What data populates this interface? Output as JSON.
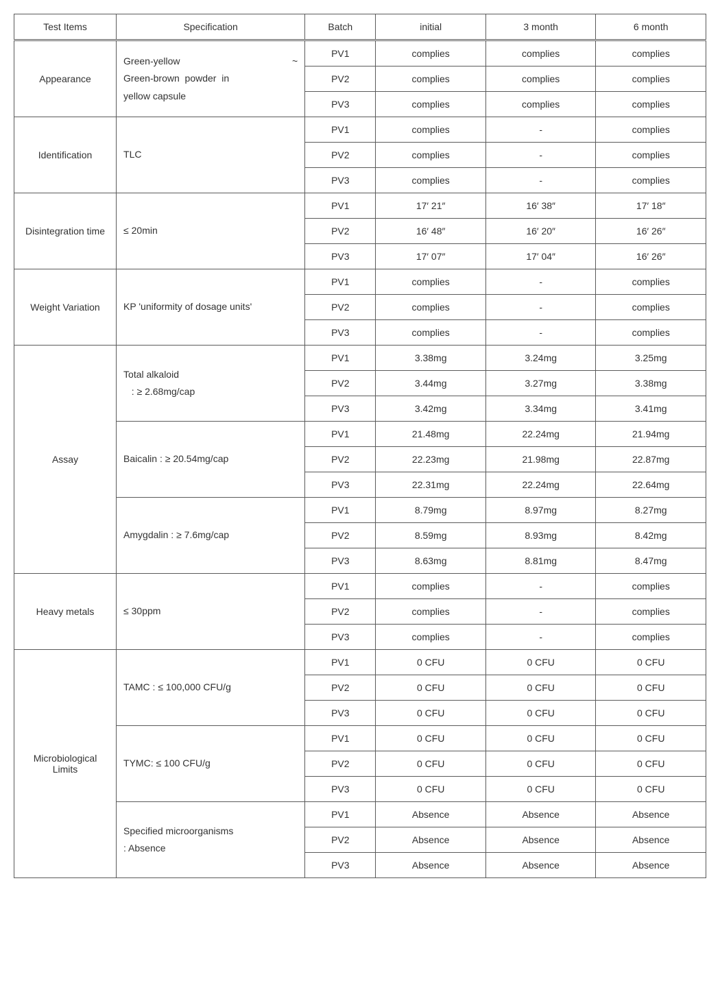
{
  "headers": {
    "test_items": "Test Items",
    "specification": "Specification",
    "batch": "Batch",
    "initial": "initial",
    "m3": "3 month",
    "m6": "6 month"
  },
  "batches": [
    "PV1",
    "PV2",
    "PV3"
  ],
  "items": [
    {
      "name": "Appearance",
      "spec_html": "Green-yellow ~ Green-brown powder in yellow capsule",
      "rows": [
        {
          "initial": "complies",
          "m3": "complies",
          "m6": "complies"
        },
        {
          "initial": "complies",
          "m3": "complies",
          "m6": "complies"
        },
        {
          "initial": "complies",
          "m3": "complies",
          "m6": "complies"
        }
      ]
    },
    {
      "name": "Identification",
      "spec": "TLC",
      "rows": [
        {
          "initial": "complies",
          "m3": "-",
          "m6": "complies"
        },
        {
          "initial": "complies",
          "m3": "-",
          "m6": "complies"
        },
        {
          "initial": "complies",
          "m3": "-",
          "m6": "complies"
        }
      ]
    },
    {
      "name": "Disintegration time",
      "spec": "≤ 20min",
      "rows": [
        {
          "initial": "17′ 21″",
          "m3": "16′ 38″",
          "m6": "17′ 18″"
        },
        {
          "initial": "16′ 48″",
          "m3": "16′ 20″",
          "m6": "16′ 26″"
        },
        {
          "initial": "17′ 07″",
          "m3": "17′ 04″",
          "m6": "16′ 26″"
        }
      ]
    },
    {
      "name": "Weight Variation",
      "spec": "KP 'uniformity of dosage units'",
      "rows": [
        {
          "initial": "complies",
          "m3": "-",
          "m6": "complies"
        },
        {
          "initial": "complies",
          "m3": "-",
          "m6": "complies"
        },
        {
          "initial": "complies",
          "m3": "-",
          "m6": "complies"
        }
      ]
    },
    {
      "name": "Assay",
      "subspecs": [
        {
          "spec_html": "Total alkaloid<br>&nbsp;&nbsp;&nbsp;: ≥ 2.68mg/cap",
          "rows": [
            {
              "initial": "3.38mg",
              "m3": "3.24mg",
              "m6": "3.25mg"
            },
            {
              "initial": "3.44mg",
              "m3": "3.27mg",
              "m6": "3.38mg"
            },
            {
              "initial": "3.42mg",
              "m3": "3.34mg",
              "m6": "3.41mg"
            }
          ]
        },
        {
          "spec": "Baicalin : ≥ 20.54mg/cap",
          "rows": [
            {
              "initial": "21.48mg",
              "m3": "22.24mg",
              "m6": "21.94mg"
            },
            {
              "initial": "22.23mg",
              "m3": "21.98mg",
              "m6": "22.87mg"
            },
            {
              "initial": "22.31mg",
              "m3": "22.24mg",
              "m6": "22.64mg"
            }
          ]
        },
        {
          "spec": "Amygdalin : ≥ 7.6mg/cap",
          "rows": [
            {
              "initial": "8.79mg",
              "m3": "8.97mg",
              "m6": "8.27mg"
            },
            {
              "initial": "8.59mg",
              "m3": "8.93mg",
              "m6": "8.42mg"
            },
            {
              "initial": "8.63mg",
              "m3": "8.81mg",
              "m6": "8.47mg"
            }
          ]
        }
      ]
    },
    {
      "name": "Heavy metals",
      "spec": "≤ 30ppm",
      "rows": [
        {
          "initial": "complies",
          "m3": "-",
          "m6": "complies"
        },
        {
          "initial": "complies",
          "m3": "-",
          "m6": "complies"
        },
        {
          "initial": "complies",
          "m3": "-",
          "m6": "complies"
        }
      ]
    },
    {
      "name": "Microbiological Limits",
      "subspecs": [
        {
          "spec": "TAMC : ≤ 100,000 CFU/g",
          "rows": [
            {
              "initial": "0 CFU",
              "m3": "0 CFU",
              "m6": "0 CFU"
            },
            {
              "initial": "0 CFU",
              "m3": "0 CFU",
              "m6": "0 CFU"
            },
            {
              "initial": "0 CFU",
              "m3": "0 CFU",
              "m6": "0 CFU"
            }
          ]
        },
        {
          "spec": "TYMC: ≤ 100 CFU/g",
          "rows": [
            {
              "initial": "0 CFU",
              "m3": "0 CFU",
              "m6": "0 CFU"
            },
            {
              "initial": "0 CFU",
              "m3": "0 CFU",
              "m6": "0 CFU"
            },
            {
              "initial": "0 CFU",
              "m3": "0 CFU",
              "m6": "0 CFU"
            }
          ]
        },
        {
          "spec_html": "Specified microorganisms<br>: Absence",
          "rows": [
            {
              "initial": "Absence",
              "m3": "Absence",
              "m6": "Absence"
            },
            {
              "initial": "Absence",
              "m3": "Absence",
              "m6": "Absence"
            },
            {
              "initial": "Absence",
              "m3": "Absence",
              "m6": "Absence"
            }
          ]
        }
      ]
    }
  ]
}
